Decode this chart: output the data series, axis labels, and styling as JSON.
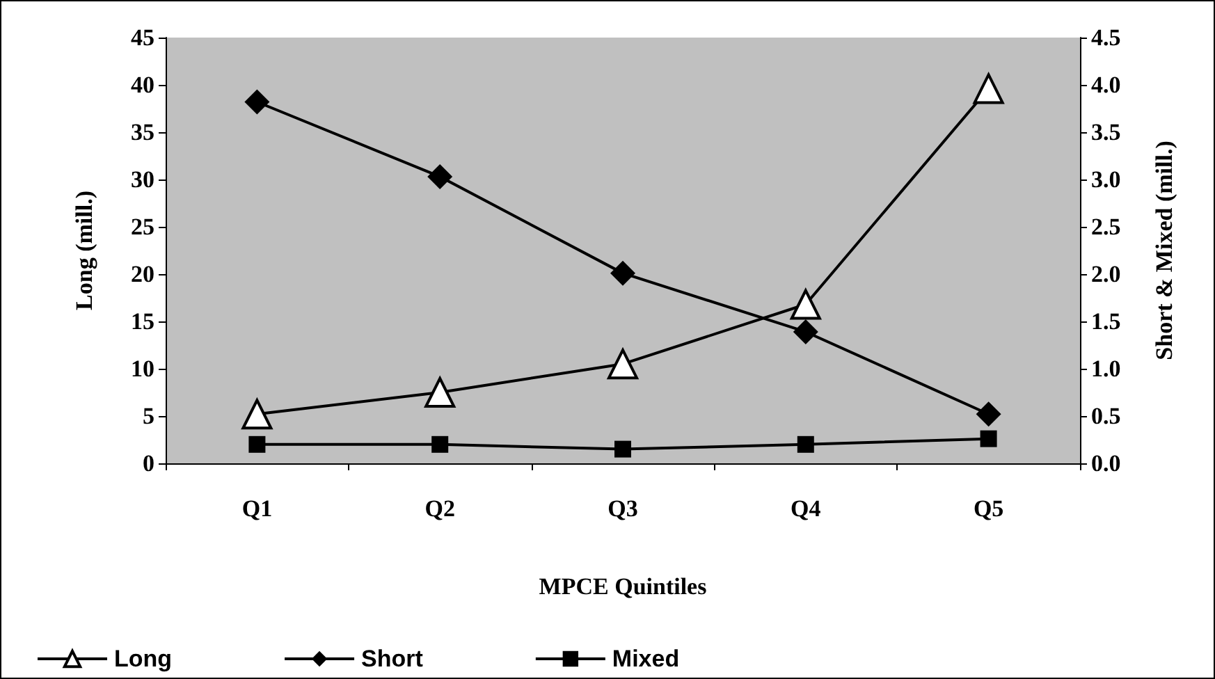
{
  "chart_data": {
    "type": "line",
    "xlabel": "MPCE Quintiles",
    "ylabel": "Long (mill.)",
    "y2label": "Short & Mixed (mill.)",
    "categories": [
      "Q1",
      "Q2",
      "Q3",
      "Q4",
      "Q5"
    ],
    "series": [
      {
        "name": "Long",
        "color": "#000000",
        "marker": "triangle",
        "values": [
          5.2,
          7.5,
          10.5,
          16.8,
          39.6
        ]
      },
      {
        "name": "Short",
        "color": "#000000",
        "marker": "diamond",
        "axis": "y2",
        "values": [
          3.82,
          3.03,
          2.01,
          1.39,
          0.52
        ]
      },
      {
        "name": "Mixed",
        "color": "#000000",
        "marker": "square",
        "axis": "y2",
        "values": [
          0.2,
          0.2,
          0.15,
          0.2,
          0.26
        ]
      }
    ],
    "ylim": [
      0,
      45
    ],
    "yticks": [
      0,
      5,
      10,
      15,
      20,
      25,
      30,
      35,
      40,
      45
    ],
    "y2lim": [
      0,
      4.5
    ],
    "y2ticks": [
      {
        "value": 0,
        "label": "0.0"
      },
      {
        "value": 0.5,
        "label": "0.5"
      },
      {
        "value": 1,
        "label": "1.0"
      },
      {
        "value": 1.5,
        "label": "1.5"
      },
      {
        "value": 2,
        "label": "2.0"
      },
      {
        "value": 2.5,
        "label": "2.5"
      },
      {
        "value": 3,
        "label": "3.0"
      },
      {
        "value": 3.5,
        "label": "3.5"
      },
      {
        "value": 4,
        "label": "4.0"
      },
      {
        "value": 4.5,
        "label": "4.5"
      }
    ],
    "grid": false,
    "legend": "bottom"
  }
}
